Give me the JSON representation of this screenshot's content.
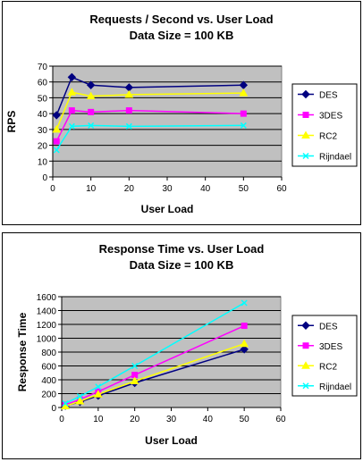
{
  "chart_data": [
    {
      "type": "line",
      "title": "Requests / Second  vs.  User Load",
      "subtitle": "Data Size = 100 KB",
      "xlabel": "User Load",
      "ylabel": "RPS",
      "xlim": [
        0,
        60
      ],
      "ylim": [
        0,
        70
      ],
      "xticks": [
        0,
        10,
        20,
        30,
        40,
        50,
        60
      ],
      "yticks": [
        0,
        10,
        20,
        30,
        40,
        50,
        60,
        70
      ],
      "grid": true,
      "legend_position": "right",
      "x": [
        1,
        5,
        10,
        20,
        50
      ],
      "series": [
        {
          "name": "DES",
          "color": "#000080",
          "marker": "diamond",
          "values": [
            39,
            63,
            58,
            56.5,
            58
          ]
        },
        {
          "name": "3DES",
          "color": "#ff00ff",
          "marker": "square",
          "values": [
            22.5,
            42,
            41,
            42,
            40
          ]
        },
        {
          "name": "RC2",
          "color": "#ffff00",
          "marker": "triangle",
          "values": [
            30,
            53.5,
            51,
            52,
            53
          ]
        },
        {
          "name": "Rijndael",
          "color": "#00ffff",
          "marker": "x",
          "values": [
            17,
            32,
            32.5,
            32,
            32.5
          ]
        }
      ]
    },
    {
      "type": "line",
      "title": "Response Time  vs.  User Load",
      "subtitle": "Data Size = 100 KB",
      "xlabel": "User Load",
      "ylabel": "Response Time",
      "xlim": [
        0,
        60
      ],
      "ylim": [
        0,
        1600
      ],
      "xticks": [
        0,
        10,
        20,
        30,
        40,
        50,
        60
      ],
      "yticks": [
        0,
        200,
        400,
        600,
        800,
        1000,
        1200,
        1400,
        1600
      ],
      "grid": true,
      "legend_position": "right",
      "x": [
        1,
        5,
        10,
        20,
        50
      ],
      "series": [
        {
          "name": "DES",
          "color": "#000080",
          "marker": "diamond",
          "values": [
            25,
            80,
            170,
            355,
            840
          ]
        },
        {
          "name": "3DES",
          "color": "#ff00ff",
          "marker": "square",
          "values": [
            40,
            115,
            230,
            470,
            1180
          ]
        },
        {
          "name": "RC2",
          "color": "#ffff00",
          "marker": "triangle",
          "values": [
            20,
            90,
            190,
            380,
            920
          ]
        },
        {
          "name": "Rijndael",
          "color": "#00ffff",
          "marker": "x",
          "values": [
            60,
            160,
            300,
            600,
            1510
          ]
        }
      ]
    }
  ]
}
